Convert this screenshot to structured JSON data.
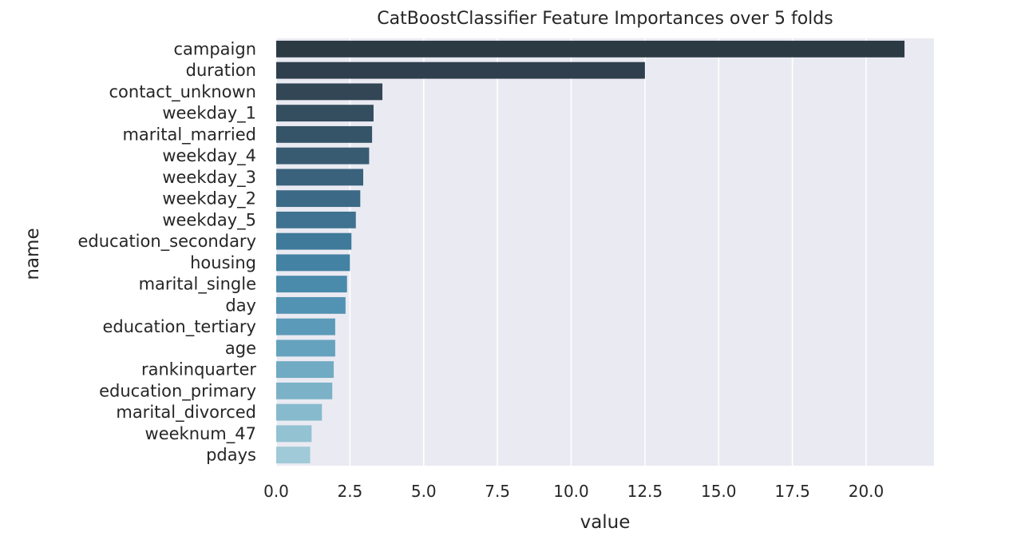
{
  "chart_data": {
    "type": "bar",
    "orientation": "horizontal",
    "title": "CatBoostClassifier Feature Importances over 5 folds",
    "xlabel": "value",
    "ylabel": "name",
    "xlim": [
      0,
      22.3
    ],
    "xticks": [
      "0.0",
      "2.5",
      "5.0",
      "7.5",
      "10.0",
      "12.5",
      "15.0",
      "17.5",
      "20.0"
    ],
    "xtick_values": [
      0,
      2.5,
      5,
      7.5,
      10,
      12.5,
      15,
      17.5,
      20
    ],
    "grid": true,
    "legend": "none",
    "background_color": "#eaeaf2",
    "categories": [
      "campaign",
      "duration",
      "contact_unknown",
      "weekday_1",
      "marital_married",
      "weekday_4",
      "weekday_3",
      "weekday_2",
      "weekday_5",
      "education_secondary",
      "housing",
      "marital_single",
      "day",
      "education_tertiary",
      "age",
      "rankinquarter",
      "education_primary",
      "marital_divorced",
      "weeknum_47",
      "pdays"
    ],
    "values": [
      21.3,
      12.5,
      3.6,
      3.3,
      3.25,
      3.15,
      2.95,
      2.85,
      2.7,
      2.55,
      2.5,
      2.4,
      2.35,
      2.0,
      2.0,
      1.95,
      1.9,
      1.55,
      1.2,
      1.15
    ],
    "colors": [
      "#2c3a44",
      "#2f3f4d",
      "#324656",
      "#344d5f",
      "#365468",
      "#385b72",
      "#3a627c",
      "#3c6a86",
      "#3e7290",
      "#407a9a",
      "#4482a3",
      "#4a8aab",
      "#5292b2",
      "#5b9ab8",
      "#65a2be",
      "#70aac3",
      "#7bb2c8",
      "#87bacd",
      "#93c2d2",
      "#a0cad7"
    ]
  }
}
